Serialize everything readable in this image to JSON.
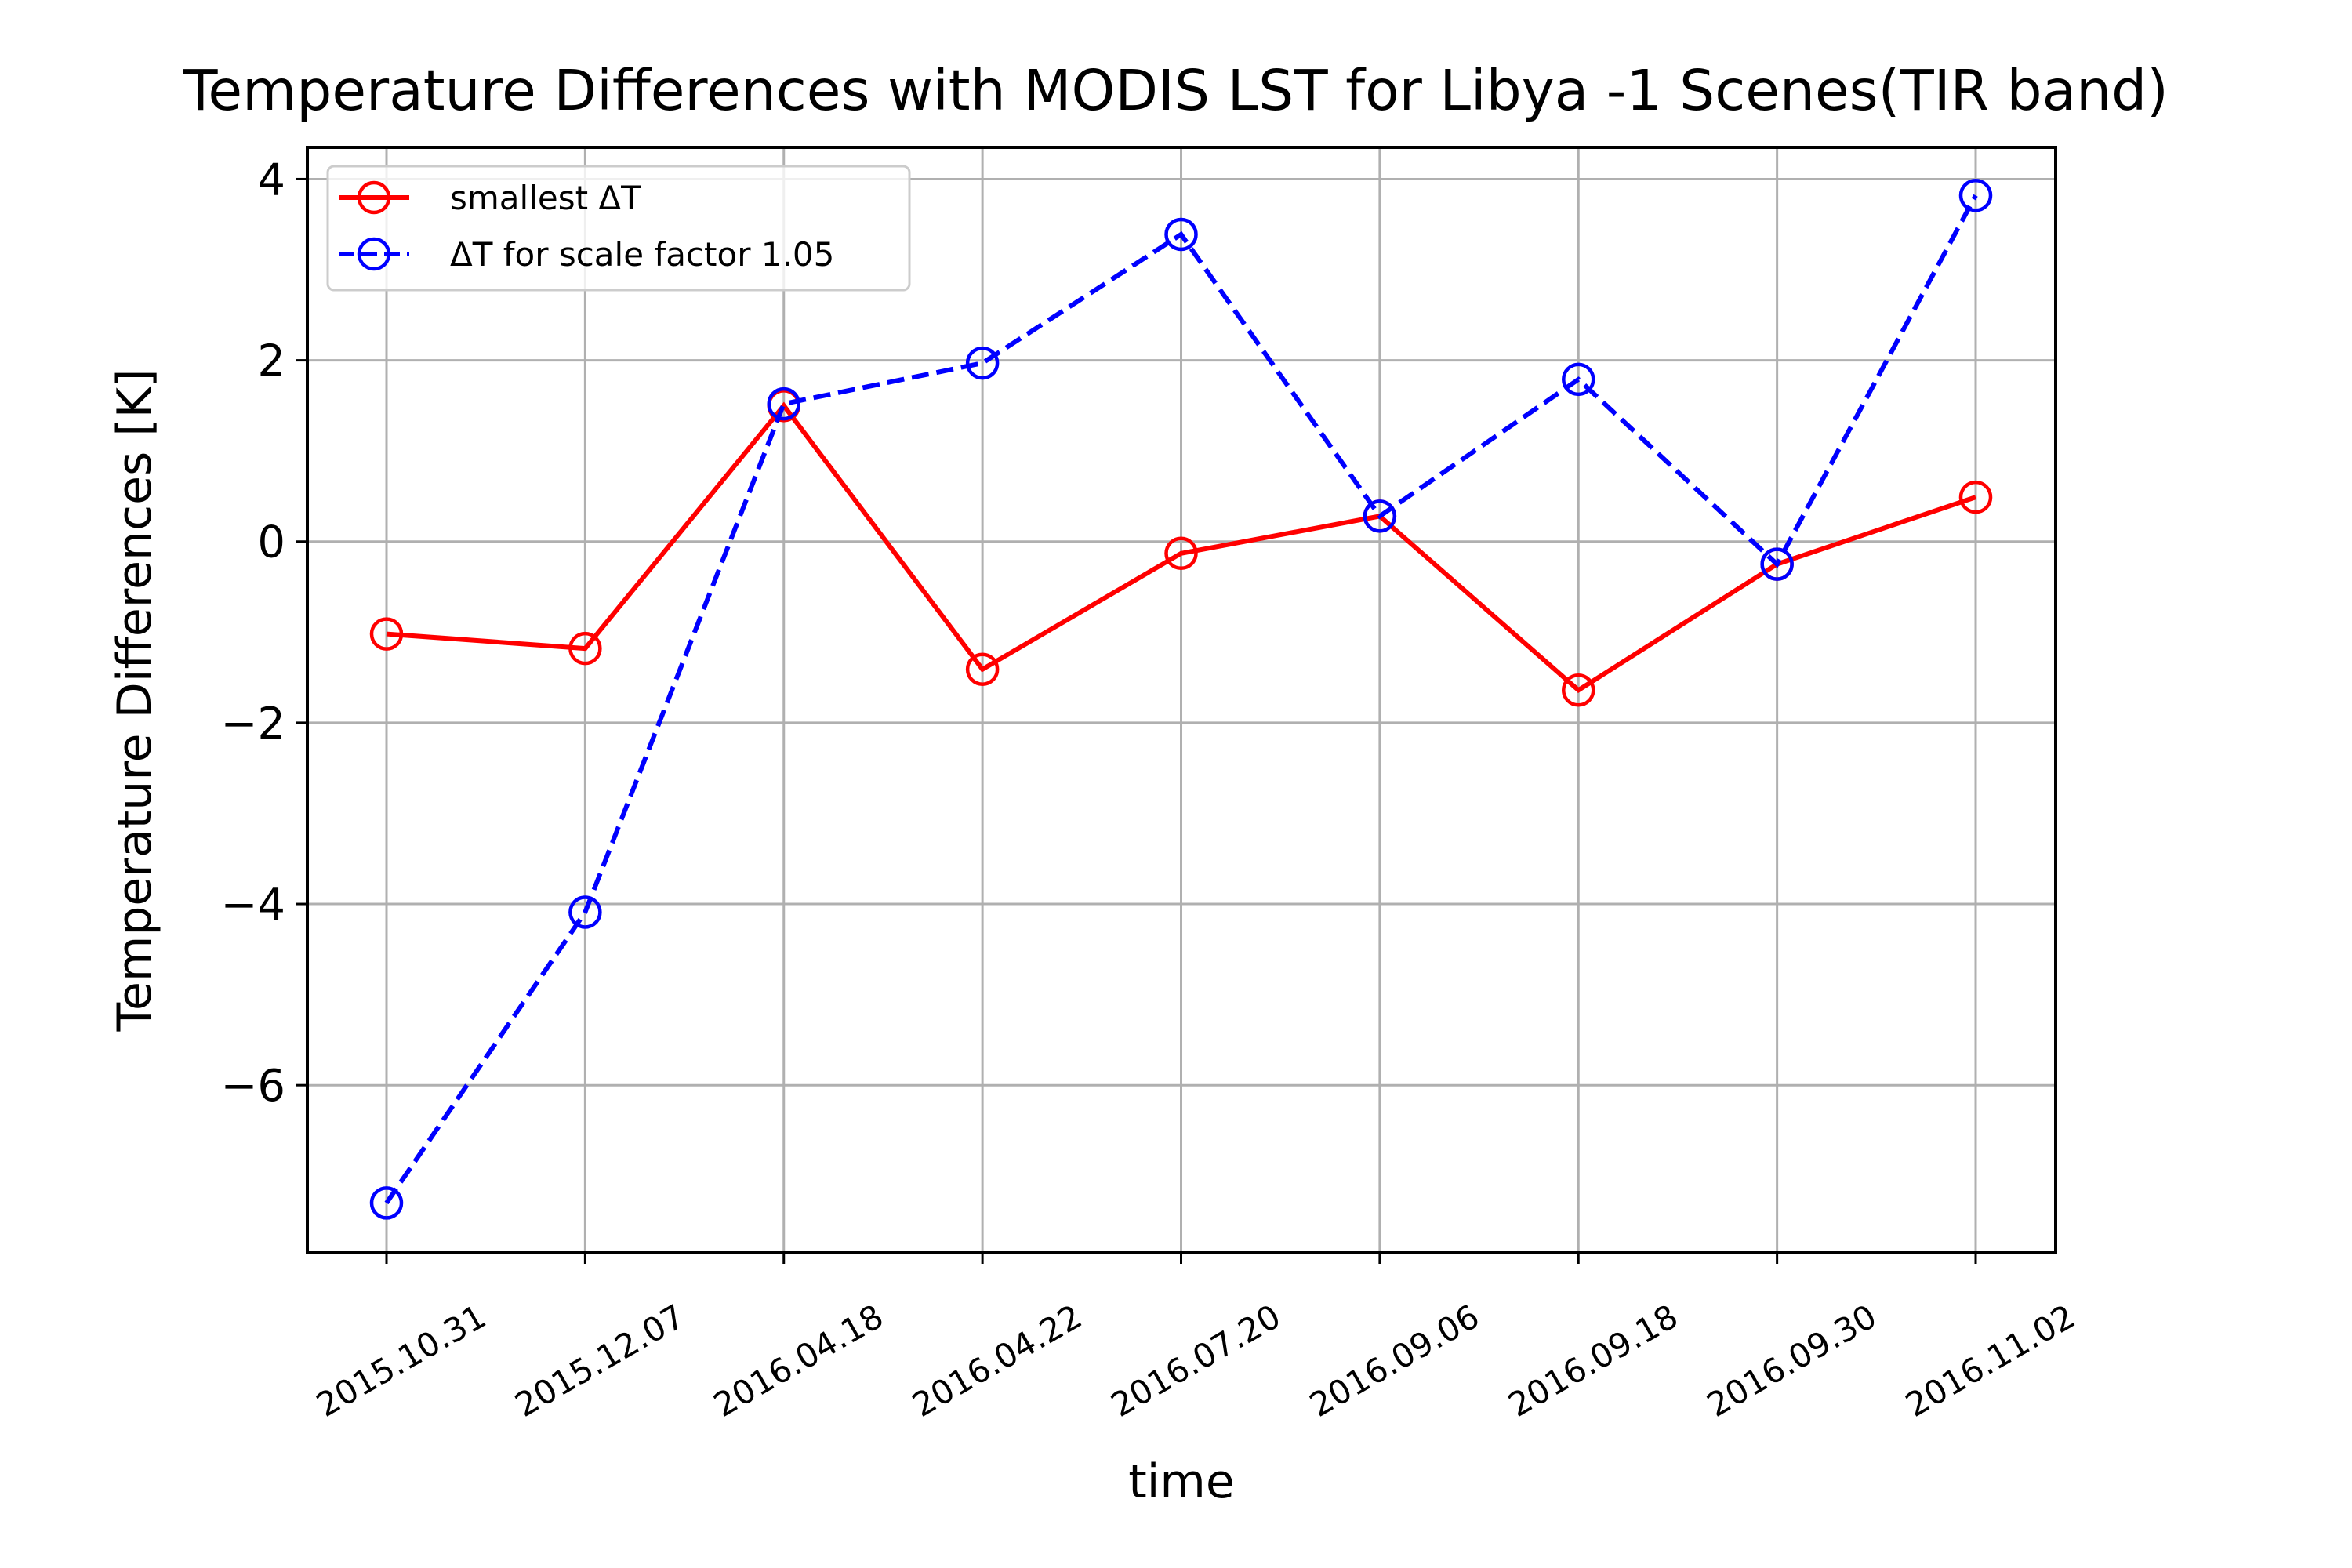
{
  "chart_data": {
    "type": "line",
    "title": "Temperature Differences with MODIS LST for Libya -1 Scenes(TIR band)",
    "xlabel": "time",
    "ylabel": "Temperature Differences [K]",
    "categories": [
      "2015.10.31",
      "2015.12.07",
      "2016.04.18",
      "2016.04.22",
      "2016.07.20",
      "2016.09.06",
      "2016.09.18",
      "2016.09.30",
      "2016.11.02"
    ],
    "y_ticks": [
      "−6",
      "−4",
      "−2",
      "0",
      "2",
      "4"
    ],
    "ylim": [
      -7.85,
      4.35
    ],
    "grid": true,
    "legend_position": "upper-left",
    "series": [
      {
        "name": "smallest ΔT",
        "color": "#ff0000",
        "line_style": "solid",
        "marker": "open-circle",
        "values": [
          -1.02,
          -1.18,
          1.5,
          -1.41,
          -0.13,
          0.28,
          -1.64,
          -0.25,
          0.49
        ]
      },
      {
        "name": "ΔT for scale factor 1.05",
        "color": "#0000ff",
        "line_style": "dashed",
        "marker": "open-circle",
        "values": [
          -7.3,
          -4.09,
          1.52,
          1.97,
          3.39,
          0.28,
          1.79,
          -0.25,
          3.82
        ]
      }
    ]
  }
}
